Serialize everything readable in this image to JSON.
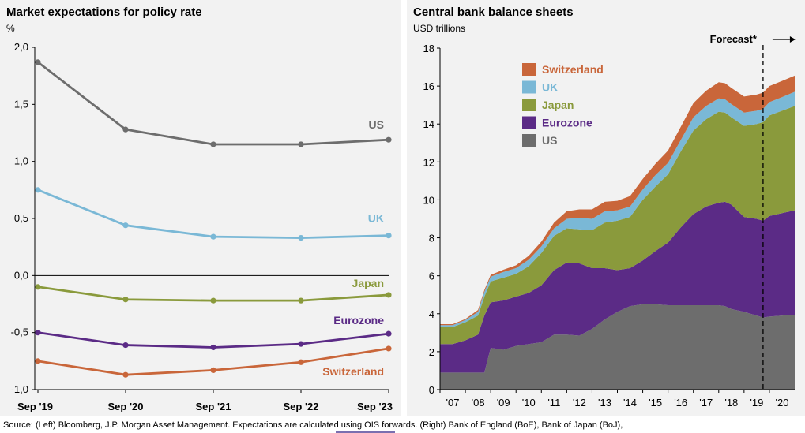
{
  "colors": {
    "US": "#6d6d6d",
    "UK": "#7ab8d6",
    "Japan": "#8a9a3c",
    "Eurozone": "#5b2b86",
    "Switzerland": "#c9663a",
    "panel_bg": "#f2f2f2"
  },
  "source_text": "Source: (Left) Bloomberg, J.P. Morgan Asset Management. Expectations are calculated using OIS forwards. (Right) Bank of England (BoE), Bank of Japan (BoJ),",
  "chart_data": [
    {
      "type": "line",
      "title": "Market expectations for policy rate",
      "ylabel": "%",
      "xlabel": "",
      "ylim": [
        -1.0,
        2.0
      ],
      "yticks": [
        -1.0,
        -0.5,
        0.0,
        0.5,
        1.0,
        1.5,
        2.0
      ],
      "ytick_labels": [
        "-1,0",
        "-0,5",
        "0,0",
        "0,5",
        "1,0",
        "1,5",
        "2,0"
      ],
      "categories": [
        "Sep '19",
        "Sep '20",
        "Sep '21",
        "Sep '22",
        "Sep '23"
      ],
      "series": [
        {
          "name": "US",
          "values": [
            1.87,
            1.28,
            1.15,
            1.15,
            1.19
          ]
        },
        {
          "name": "UK",
          "values": [
            0.75,
            0.44,
            0.34,
            0.33,
            0.35
          ]
        },
        {
          "name": "Japan",
          "values": [
            -0.1,
            -0.21,
            -0.22,
            -0.22,
            -0.17
          ]
        },
        {
          "name": "Eurozone",
          "values": [
            -0.5,
            -0.61,
            -0.63,
            -0.6,
            -0.51
          ]
        },
        {
          "name": "Switzerland",
          "values": [
            -0.75,
            -0.87,
            -0.83,
            -0.76,
            -0.64
          ]
        }
      ],
      "legend": "inline labels at line ends",
      "grid": false
    },
    {
      "type": "area",
      "stacked": true,
      "title": "Central bank balance sheets",
      "ylabel": "USD trillions",
      "xlabel": "",
      "ylim": [
        0,
        18
      ],
      "yticks": [
        0,
        2,
        4,
        6,
        8,
        10,
        12,
        14,
        16,
        18
      ],
      "xlim": [
        2007,
        2021
      ],
      "xticks": [
        2007,
        2008,
        2009,
        2010,
        2011,
        2012,
        2013,
        2014,
        2015,
        2016,
        2017,
        2018,
        2019,
        2020
      ],
      "xtick_labels": [
        "'07",
        "'08",
        "'09",
        "'10",
        "'11",
        "'12",
        "'13",
        "'14",
        "'15",
        "'16",
        "'17",
        "'18",
        "'19",
        "'20"
      ],
      "legend": "top-left",
      "legend_order": [
        "Switzerland",
        "UK",
        "Japan",
        "Eurozone",
        "US"
      ],
      "forecast_label": "Forecast*",
      "forecast_start": 2019.75,
      "grid": false,
      "x": [
        2007.0,
        2007.5,
        2008.0,
        2008.5,
        2008.75,
        2009.0,
        2009.5,
        2010.0,
        2010.5,
        2011.0,
        2011.5,
        2012.0,
        2012.5,
        2013.0,
        2013.5,
        2014.0,
        2014.5,
        2015.0,
        2015.5,
        2016.0,
        2016.5,
        2017.0,
        2017.5,
        2018.0,
        2018.25,
        2018.5,
        2019.0,
        2019.5,
        2019.75,
        2020.0,
        2020.5,
        2021.0
      ],
      "series": [
        {
          "name": "US",
          "values": [
            0.9,
            0.9,
            0.9,
            0.9,
            0.9,
            2.2,
            2.1,
            2.3,
            2.4,
            2.5,
            2.9,
            2.9,
            2.85,
            3.2,
            3.7,
            4.1,
            4.4,
            4.5,
            4.5,
            4.45,
            4.45,
            4.45,
            4.45,
            4.45,
            4.4,
            4.25,
            4.1,
            3.9,
            3.8,
            3.85,
            3.9,
            3.95
          ]
        },
        {
          "name": "Eurozone",
          "values": [
            1.5,
            1.5,
            1.7,
            2.0,
            3.0,
            2.4,
            2.6,
            2.6,
            2.7,
            3.0,
            3.4,
            3.8,
            3.8,
            3.2,
            2.7,
            2.2,
            2.0,
            2.3,
            2.8,
            3.3,
            4.1,
            4.8,
            5.2,
            5.4,
            5.5,
            5.5,
            5.0,
            5.1,
            5.1,
            5.3,
            5.4,
            5.5
          ]
        },
        {
          "name": "Japan",
          "values": [
            0.9,
            0.9,
            0.95,
            1.0,
            1.0,
            1.1,
            1.2,
            1.2,
            1.4,
            1.7,
            1.8,
            1.8,
            1.8,
            2.0,
            2.4,
            2.6,
            2.7,
            3.2,
            3.4,
            3.6,
            4.0,
            4.4,
            4.6,
            4.8,
            4.7,
            4.6,
            4.8,
            5.0,
            5.2,
            5.3,
            5.4,
            5.5
          ]
        },
        {
          "name": "UK",
          "values": [
            0.1,
            0.1,
            0.12,
            0.2,
            0.25,
            0.25,
            0.3,
            0.3,
            0.35,
            0.35,
            0.4,
            0.5,
            0.6,
            0.6,
            0.6,
            0.55,
            0.55,
            0.55,
            0.6,
            0.6,
            0.6,
            0.7,
            0.7,
            0.7,
            0.7,
            0.7,
            0.7,
            0.7,
            0.7,
            0.7,
            0.72,
            0.75
          ]
        },
        {
          "name": "Switzerland",
          "values": [
            0.05,
            0.05,
            0.05,
            0.1,
            0.1,
            0.1,
            0.12,
            0.15,
            0.2,
            0.25,
            0.3,
            0.4,
            0.45,
            0.5,
            0.5,
            0.5,
            0.55,
            0.55,
            0.6,
            0.65,
            0.7,
            0.75,
            0.8,
            0.85,
            0.85,
            0.85,
            0.85,
            0.85,
            0.85,
            0.85,
            0.85,
            0.85
          ]
        }
      ]
    }
  ]
}
